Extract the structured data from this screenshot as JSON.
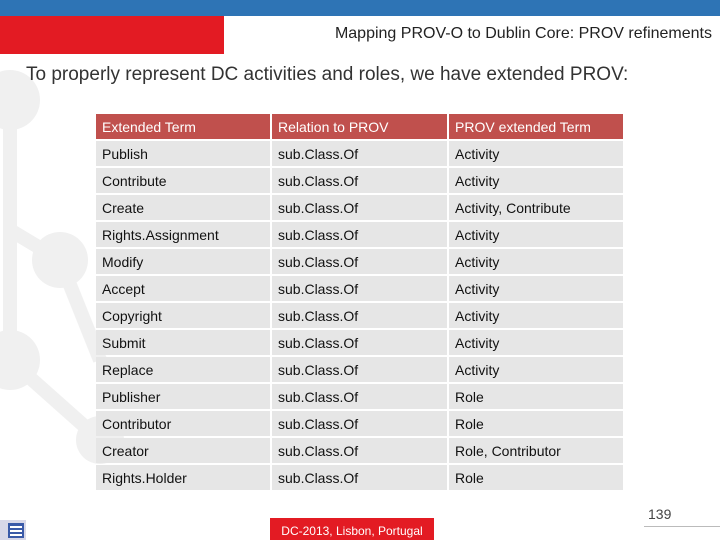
{
  "slide": {
    "title": "Mapping PROV-O to Dublin Core: PROV refinements",
    "intro": "To properly represent DC activities and roles, we have extended PROV:",
    "footer": "DC-2013, Lisbon, Portugal",
    "page_number": "139"
  },
  "table": {
    "headers": [
      "Extended Term",
      "Relation to PROV",
      "PROV extended Term"
    ],
    "rows": [
      [
        "Publish",
        "sub.Class.Of",
        "Activity"
      ],
      [
        "Contribute",
        "sub.Class.Of",
        "Activity"
      ],
      [
        "Create",
        "sub.Class.Of",
        "Activity, Contribute"
      ],
      [
        "Rights.Assignment",
        "sub.Class.Of",
        "Activity"
      ],
      [
        "Modify",
        "sub.Class.Of",
        "Activity"
      ],
      [
        "Accept",
        "sub.Class.Of",
        "Activity"
      ],
      [
        "Copyright",
        "sub.Class.Of",
        "Activity"
      ],
      [
        "Submit",
        "sub.Class.Of",
        "Activity"
      ],
      [
        "Replace",
        "sub.Class.Of",
        "Activity"
      ],
      [
        "Publisher",
        "sub.Class.Of",
        "Role"
      ],
      [
        "Contributor",
        "sub.Class.Of",
        "Role"
      ],
      [
        "Creator",
        "sub.Class.Of",
        "Role, Contributor"
      ],
      [
        "Rights.Holder",
        "sub.Class.Of",
        "Role"
      ]
    ]
  },
  "colors": {
    "accent_red": "#e31b23",
    "top_blue": "#2e74b5",
    "header_fill": "#c0504d",
    "cell_fill": "#e6e6e6"
  }
}
